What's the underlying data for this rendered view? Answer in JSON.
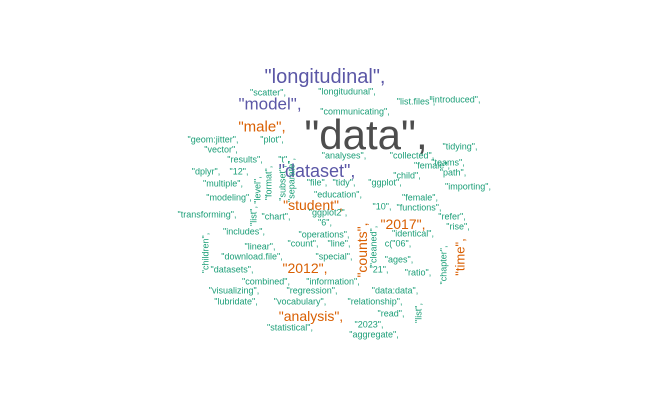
{
  "colors": {
    "gray": "#4d4d4d",
    "purple": "#5b57a6",
    "orange": "#d95f02",
    "teal": "#1b9e77"
  },
  "words": [
    {
      "text": "\"data\",",
      "color": "gray",
      "rot": 0
    },
    {
      "text": "\"longitudinal\",",
      "color": "purple",
      "rot": 0
    },
    {
      "text": "\"model\",",
      "color": "purple",
      "rot": 0
    },
    {
      "text": "\"dataset\",",
      "color": "purple",
      "rot": 0
    },
    {
      "text": "\"male\",",
      "color": "orange",
      "rot": 0
    },
    {
      "text": "\"student\",",
      "color": "orange",
      "rot": 0
    },
    {
      "text": "\"2017\",",
      "color": "orange",
      "rot": 0
    },
    {
      "text": "\"2012\",",
      "color": "orange",
      "rot": 0
    },
    {
      "text": "\"analysis\",",
      "color": "orange",
      "rot": 0
    },
    {
      "text": "\"counts\",",
      "color": "orange",
      "rot": 90
    },
    {
      "text": "\"time\",",
      "color": "orange",
      "rot": 90
    },
    {
      "text": "\"scatter\",",
      "color": "teal",
      "rot": 0
    },
    {
      "text": "\"longitudunal\",",
      "color": "teal",
      "rot": 0
    },
    {
      "text": "\"list.files\",",
      "color": "teal",
      "rot": 0
    },
    {
      "text": "\"introduced\",",
      "color": "teal",
      "rot": 0
    },
    {
      "text": "\"communicating\",",
      "color": "teal",
      "rot": 0
    },
    {
      "text": "\"geom:jitter\",",
      "color": "teal",
      "rot": 0
    },
    {
      "text": "\"plot\",",
      "color": "teal",
      "rot": 0
    },
    {
      "text": "\"vector\",",
      "color": "teal",
      "rot": 0
    },
    {
      "text": "\"results\",",
      "color": "teal",
      "rot": 0
    },
    {
      "text": "\"t\",",
      "color": "teal",
      "rot": 0
    },
    {
      "text": "\"dplyr\",",
      "color": "teal",
      "rot": 0
    },
    {
      "text": "\"12\",",
      "color": "teal",
      "rot": 0
    },
    {
      "text": "\"multiple\",",
      "color": "teal",
      "rot": 0
    },
    {
      "text": "\"modeling\",",
      "color": "teal",
      "rot": 0
    },
    {
      "text": "\"transforming\",",
      "color": "teal",
      "rot": 0
    },
    {
      "text": "\"analyses\",",
      "color": "teal",
      "rot": 0
    },
    {
      "text": "\"collected\",",
      "color": "teal",
      "rot": 0
    },
    {
      "text": "\"tidying\",",
      "color": "teal",
      "rot": 0
    },
    {
      "text": "\"female\",",
      "color": "teal",
      "rot": 0
    },
    {
      "text": "\"child\",",
      "color": "teal",
      "rot": 0
    },
    {
      "text": "\"path\",",
      "color": "teal",
      "rot": 0
    },
    {
      "text": "\"file\",",
      "color": "teal",
      "rot": 0
    },
    {
      "text": "\"tidy\",",
      "color": "teal",
      "rot": 0
    },
    {
      "text": "\"ggplot\",",
      "color": "teal",
      "rot": 0
    },
    {
      "text": "\"importing\",",
      "color": "teal",
      "rot": 0
    },
    {
      "text": "\"education\",",
      "color": "teal",
      "rot": 0
    },
    {
      "text": "\"female\",",
      "color": "teal",
      "rot": 0
    },
    {
      "text": "\"10\",",
      "color": "teal",
      "rot": 0
    },
    {
      "text": "\"functions\",",
      "color": "teal",
      "rot": 0
    },
    {
      "text": "\"chart\",",
      "color": "teal",
      "rot": 0
    },
    {
      "text": "\"ggplot2\",",
      "color": "teal",
      "rot": 0
    },
    {
      "text": "\"refer\",",
      "color": "teal",
      "rot": 0
    },
    {
      "text": "\"rise\",",
      "color": "teal",
      "rot": 0
    },
    {
      "text": "\"includes\",",
      "color": "teal",
      "rot": 0
    },
    {
      "text": "\"operations\",",
      "color": "teal",
      "rot": 0
    },
    {
      "text": "\"identical\",",
      "color": "teal",
      "rot": 0
    },
    {
      "text": "\"linear\",",
      "color": "teal",
      "rot": 0
    },
    {
      "text": "\"count\",",
      "color": "teal",
      "rot": 0
    },
    {
      "text": "\"line\",",
      "color": "teal",
      "rot": 0
    },
    {
      "text": "c(\"06\",",
      "color": "teal",
      "rot": 0
    },
    {
      "text": "\"download.file\",",
      "color": "teal",
      "rot": 0
    },
    {
      "text": "\"special\",",
      "color": "teal",
      "rot": 0
    },
    {
      "text": "\"ages\",",
      "color": "teal",
      "rot": 0
    },
    {
      "text": "\"datasets\",",
      "color": "teal",
      "rot": 0
    },
    {
      "text": "\"21\",",
      "color": "teal",
      "rot": 0
    },
    {
      "text": "\"ratio\",",
      "color": "teal",
      "rot": 0
    },
    {
      "text": "\"combined\",",
      "color": "teal",
      "rot": 0
    },
    {
      "text": "\"information\",",
      "color": "teal",
      "rot": 0
    },
    {
      "text": "\"visualizing\",",
      "color": "teal",
      "rot": 0
    },
    {
      "text": "\"regression\",",
      "color": "teal",
      "rot": 0
    },
    {
      "text": "\"data:data\",",
      "color": "teal",
      "rot": 0
    },
    {
      "text": "\"lubridate\",",
      "color": "teal",
      "rot": 0
    },
    {
      "text": "\"vocabulary\",",
      "color": "teal",
      "rot": 0
    },
    {
      "text": "\"relationship\",",
      "color": "teal",
      "rot": 0
    },
    {
      "text": "\"read\",",
      "color": "teal",
      "rot": 0
    },
    {
      "text": "\"statistical\",",
      "color": "teal",
      "rot": 0
    },
    {
      "text": "\"2023\",",
      "color": "teal",
      "rot": 0
    },
    {
      "text": "\"aggregate\",",
      "color": "teal",
      "rot": 0
    },
    {
      "text": "\"children\",",
      "color": "teal",
      "rot": 90
    },
    {
      "text": "\"level\",",
      "color": "teal",
      "rot": 90
    },
    {
      "text": "\"format\",",
      "color": "teal",
      "rot": 90
    },
    {
      "text": "\"subset\",",
      "color": "teal",
      "rot": 90
    },
    {
      "text": "\"separate\",",
      "color": "teal",
      "rot": 90
    },
    {
      "text": "\"list\",",
      "color": "teal",
      "rot": 90
    },
    {
      "text": "\"cleaned\",",
      "color": "teal",
      "rot": 90
    },
    {
      "text": "\"chapter\",",
      "color": "teal",
      "rot": 90
    },
    {
      "text": "\"list\",",
      "color": "teal",
      "rot": 90
    },
    {
      "text": "\"6\",",
      "color": "teal",
      "rot": 0
    },
    {
      "text": "\"teams\",",
      "color": "teal",
      "rot": 0
    }
  ]
}
